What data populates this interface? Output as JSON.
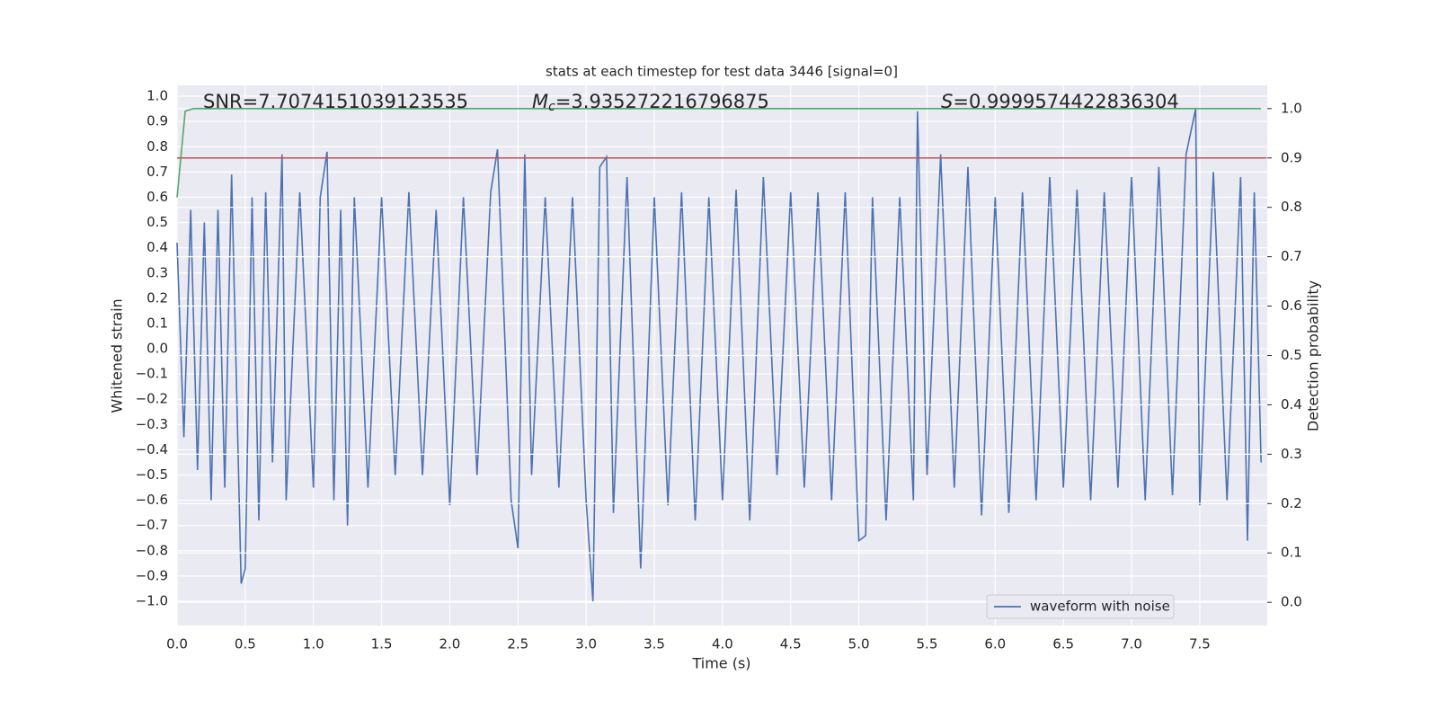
{
  "chart_data": {
    "type": "line",
    "title": "stats at each timestep for test data 3446 [signal=0]",
    "xlabel": "Time (s)",
    "ylabel": "Whitened strain",
    "y2label": "Detection probability",
    "annotations": [
      {
        "text": "SNR=7.7074151039123535"
      },
      {
        "symbol": "M",
        "subscript": "c",
        "text": "=3.935272216796875"
      },
      {
        "symbol": "S",
        "text": "=0.9999574422836304"
      }
    ],
    "xlim": [
      0,
      7.995
    ],
    "ylim": [
      -1.096,
      1.043
    ],
    "y2lim": [
      -0.047,
      1.047
    ],
    "xticks": [
      {
        "value": 0,
        "label": "0.0"
      },
      0.5,
      {
        "value": 1,
        "label": "1.0"
      },
      1.5,
      {
        "value": 2,
        "label": "2.0"
      },
      2.5,
      {
        "value": 3,
        "label": "3.0"
      },
      3.5,
      {
        "value": 4,
        "label": "4.0"
      },
      4.5,
      {
        "value": 5,
        "label": "5.0"
      },
      5.5,
      {
        "value": 6,
        "label": "6.0"
      },
      6.5,
      {
        "value": 7,
        "label": "7.0"
      },
      7.5
    ],
    "yticks": [
      {
        "value": -1,
        "label": "−1.0"
      },
      {
        "value": -0.9,
        "label": "−0.9"
      },
      {
        "value": -0.8,
        "label": "−0.8"
      },
      {
        "value": -0.7,
        "label": "−0.7"
      },
      {
        "value": -0.6,
        "label": "−0.6"
      },
      {
        "value": -0.5,
        "label": "−0.5"
      },
      {
        "value": -0.4,
        "label": "−0.4"
      },
      {
        "value": -0.3,
        "label": "−0.3"
      },
      {
        "value": -0.2,
        "label": "−0.2"
      },
      {
        "value": -0.1,
        "label": "−0.1"
      },
      {
        "value": 0,
        "label": "0.0"
      },
      0.1,
      0.2,
      0.3,
      0.4,
      0.5,
      0.6,
      0.7,
      0.8,
      0.9,
      {
        "value": 1,
        "label": "1.0"
      }
    ],
    "y2ticks": [
      {
        "value": 0,
        "label": "0.0"
      },
      0.1,
      0.2,
      0.3,
      0.4,
      0.5,
      0.6,
      0.7,
      0.8,
      0.9,
      {
        "value": 1,
        "label": "1.0"
      }
    ],
    "grid": true,
    "legend_position": "lower right",
    "series": [
      {
        "name": "waveform with noise",
        "color": "#4c72b0",
        "x": [
          0.0,
          0.05,
          0.1,
          0.15,
          0.2,
          0.25,
          0.3,
          0.35,
          0.4,
          0.47,
          0.5,
          0.55,
          0.6,
          0.65,
          0.7,
          0.77,
          0.8,
          0.9,
          1.0,
          1.05,
          1.1,
          1.15,
          1.2,
          1.25,
          1.3,
          1.4,
          1.5,
          1.6,
          1.7,
          1.8,
          1.9,
          2.0,
          2.1,
          2.2,
          2.3,
          2.35,
          2.45,
          2.5,
          2.55,
          2.6,
          2.7,
          2.8,
          2.9,
          3.0,
          3.05,
          3.1,
          3.15,
          3.2,
          3.3,
          3.4,
          3.5,
          3.6,
          3.7,
          3.8,
          3.9,
          4.0,
          4.1,
          4.2,
          4.3,
          4.4,
          4.5,
          4.6,
          4.7,
          4.8,
          4.9,
          5.0,
          5.05,
          5.1,
          5.2,
          5.3,
          5.4,
          5.43,
          5.5,
          5.6,
          5.7,
          5.8,
          5.9,
          6.0,
          6.1,
          6.2,
          6.3,
          6.4,
          6.5,
          6.6,
          6.7,
          6.8,
          6.9,
          7.0,
          7.1,
          7.2,
          7.3,
          7.4,
          7.47,
          7.5,
          7.6,
          7.7,
          7.8,
          7.85,
          7.9,
          7.95
        ],
        "values": [
          0.42,
          -0.35,
          0.55,
          -0.48,
          0.5,
          -0.6,
          0.55,
          -0.55,
          0.69,
          -0.93,
          -0.87,
          0.6,
          -0.68,
          0.62,
          -0.45,
          0.77,
          -0.6,
          0.62,
          -0.55,
          0.6,
          0.78,
          -0.6,
          0.55,
          -0.7,
          0.6,
          -0.55,
          0.6,
          -0.5,
          0.62,
          -0.5,
          0.55,
          -0.62,
          0.6,
          -0.5,
          0.62,
          0.79,
          -0.6,
          -0.79,
          0.77,
          -0.5,
          0.6,
          -0.55,
          0.6,
          -0.6,
          -1.0,
          0.72,
          0.76,
          -0.65,
          0.68,
          -0.87,
          0.6,
          -0.62,
          0.62,
          -0.68,
          0.6,
          -0.6,
          0.63,
          -0.68,
          0.68,
          -0.5,
          0.62,
          -0.55,
          0.62,
          -0.6,
          0.62,
          -0.76,
          -0.74,
          0.6,
          -0.68,
          0.6,
          -0.6,
          0.94,
          -0.5,
          0.77,
          -0.55,
          0.72,
          -0.66,
          0.6,
          -0.65,
          0.62,
          -0.6,
          0.68,
          -0.55,
          0.63,
          -0.6,
          0.62,
          -0.55,
          0.68,
          -0.6,
          0.72,
          -0.58,
          0.77,
          0.95,
          -0.62,
          0.7,
          -0.6,
          0.68,
          -0.76,
          0.62,
          -0.45
        ]
      },
      {
        "color": "#55a868",
        "axis": "y2",
        "x": [
          0,
          0.06,
          0.12,
          7.95
        ],
        "values": [
          0.82,
          0.995,
          1.0,
          1.0
        ]
      },
      {
        "color": "#c44e52",
        "axis": "y2",
        "x": [
          0,
          7.99
        ],
        "values": [
          0.9,
          0.9
        ]
      }
    ]
  }
}
